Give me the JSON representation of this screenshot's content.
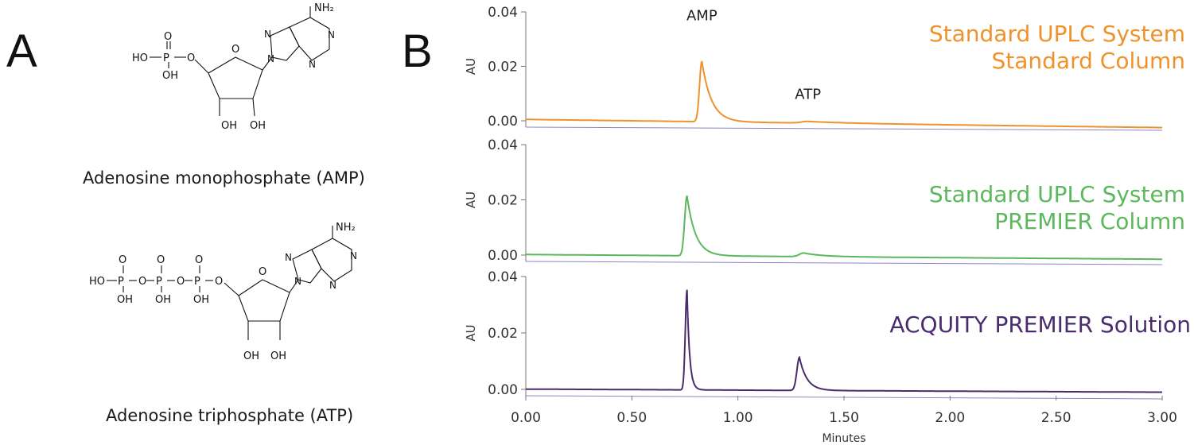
{
  "panels": {
    "a": "A",
    "b": "B"
  },
  "molecules": {
    "amp": {
      "caption": "Adenosine monophosphate (AMP)",
      "atoms": {
        "nh2": "NH₂",
        "ho": "HO",
        "p": "P",
        "o": "O",
        "oh": "OH",
        "n": "N"
      }
    },
    "atp": {
      "caption": "Adenosine triphosphate (ATP)",
      "atoms": {
        "nh2": "NH₂",
        "ho": "HO",
        "p": "P",
        "o": "O",
        "oh": "OH",
        "n": "N"
      }
    }
  },
  "chart_data": {
    "type": "line",
    "xlabel": "Minutes",
    "ylabel": "AU",
    "xlim": [
      0,
      3
    ],
    "xticks": [
      "0.00",
      "0.50",
      "1.00",
      "1.50",
      "2.00",
      "2.50",
      "3.00"
    ],
    "ylim": [
      0,
      0.04
    ],
    "yticks": [
      "0.00",
      "0.02",
      "0.04"
    ],
    "peak_labels": [
      {
        "text": "AMP",
        "x": 0.83,
        "y": 0.037
      },
      {
        "text": "ATP",
        "x": 1.33,
        "y": 0.008
      }
    ],
    "series": [
      {
        "label_lines": [
          "Standard UPLC System",
          "Standard Column"
        ],
        "color": "#f0922b",
        "peaks": [
          {
            "rt": 0.83,
            "height": 0.0222,
            "sigma": 0.011,
            "tau": 0.045
          },
          {
            "rt": 1.33,
            "height": 0.0006,
            "sigma": 0.03,
            "tau": 0.2
          }
        ],
        "baseline": [
          0.0005,
          -0.0025
        ]
      },
      {
        "label_lines": [
          "Standard UPLC System",
          "PREMIER Column"
        ],
        "color": "#5cb85c",
        "peaks": [
          {
            "rt": 0.76,
            "height": 0.0217,
            "sigma": 0.011,
            "tau": 0.04
          },
          {
            "rt": 1.31,
            "height": 0.0013,
            "sigma": 0.02,
            "tau": 0.09
          }
        ],
        "baseline": [
          0.0002,
          -0.0015
        ]
      },
      {
        "label_lines": [
          "ACQUITY PREMIER Solution"
        ],
        "color": "#4a2c6e",
        "peaks": [
          {
            "rt": 0.76,
            "height": 0.0355,
            "sigma": 0.008,
            "tau": 0.012
          },
          {
            "rt": 1.29,
            "height": 0.0117,
            "sigma": 0.012,
            "tau": 0.035
          }
        ],
        "baseline": [
          0.0001,
          -0.001
        ]
      }
    ]
  }
}
